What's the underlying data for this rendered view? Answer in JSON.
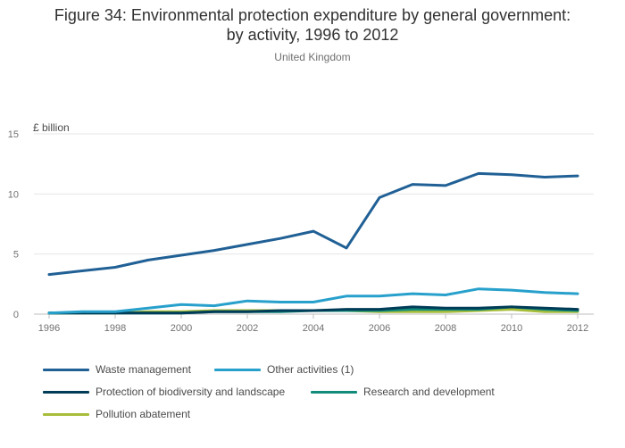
{
  "chart_data": {
    "type": "line",
    "title_line1": "Figure 34: Environmental protection expenditure by general government:",
    "title_line2": "by activity, 1996 to 2012",
    "subtitle": "United Kingdom",
    "ylabel": "£ billion",
    "xlabel": "",
    "ylim": [
      0,
      15
    ],
    "xlim": [
      1996,
      2012
    ],
    "yticks": [
      0,
      5,
      10,
      15
    ],
    "xticks": [
      1996,
      1998,
      2000,
      2002,
      2004,
      2006,
      2008,
      2010,
      2012
    ],
    "grid": true,
    "legend_position": "bottom",
    "x": [
      1996,
      1997,
      1998,
      1999,
      2000,
      2001,
      2002,
      2003,
      2004,
      2005,
      2006,
      2007,
      2008,
      2009,
      2010,
      2011,
      2012
    ],
    "series": [
      {
        "name": "Waste management",
        "color": "#206095",
        "values": [
          3.3,
          3.6,
          3.9,
          4.5,
          4.9,
          5.3,
          5.8,
          6.3,
          6.9,
          5.5,
          9.7,
          10.8,
          10.7,
          11.7,
          11.6,
          11.4,
          11.5
        ]
      },
      {
        "name": "Other activities (1)",
        "color": "#27a0cc",
        "values": [
          0.1,
          0.2,
          0.2,
          0.5,
          0.8,
          0.7,
          1.1,
          1.0,
          1.0,
          1.5,
          1.5,
          1.7,
          1.6,
          2.1,
          2.0,
          1.8,
          1.7
        ]
      },
      {
        "name": "Protection of biodiversity and landscape",
        "color": "#003c57",
        "values": [
          0.1,
          0.1,
          0.1,
          0.1,
          0.1,
          0.2,
          0.2,
          0.3,
          0.3,
          0.4,
          0.4,
          0.6,
          0.5,
          0.5,
          0.6,
          0.5,
          0.4
        ]
      },
      {
        "name": "Research and development",
        "color": "#118c7b",
        "values": [
          0.1,
          0.1,
          0.1,
          0.1,
          0.1,
          0.2,
          0.2,
          0.2,
          0.3,
          0.3,
          0.3,
          0.4,
          0.4,
          0.4,
          0.6,
          0.4,
          0.3
        ]
      },
      {
        "name": "Pollution abatement",
        "color": "#a8bd3a",
        "values": [
          0.1,
          0.1,
          0.1,
          0.2,
          0.2,
          0.3,
          0.3,
          0.3,
          0.3,
          0.3,
          0.2,
          0.2,
          0.2,
          0.3,
          0.4,
          0.2,
          0.2
        ]
      }
    ],
    "colors": {
      "grid": "#e6e6e6",
      "axis": "#bebebe"
    }
  }
}
